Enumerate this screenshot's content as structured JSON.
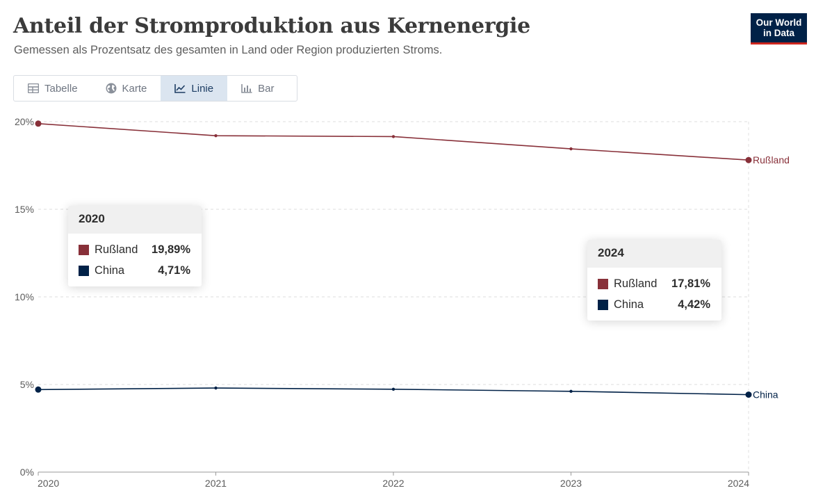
{
  "header": {
    "title": "Anteil der Stromproduktion aus Kernenergie",
    "subtitle": "Gemessen als Prozentsatz des gesamten in Land oder Region produzierten Stroms.",
    "logo_line1": "Our World",
    "logo_line2": "in Data"
  },
  "tabs": [
    {
      "label": "Tabelle",
      "icon": "table-icon",
      "active": false
    },
    {
      "label": "Karte",
      "icon": "globe-icon",
      "active": false
    },
    {
      "label": "Linie",
      "icon": "line-chart-icon",
      "active": true
    },
    {
      "label": "Bar",
      "icon": "bar-chart-icon",
      "active": false
    }
  ],
  "tooltips": [
    {
      "year": "2020",
      "rows": [
        {
          "name": "Rußland",
          "value": "19,89%",
          "color": "#883039"
        },
        {
          "name": "China",
          "value": "4,71%",
          "color": "#002147"
        }
      ]
    },
    {
      "year": "2024",
      "rows": [
        {
          "name": "Rußland",
          "value": "17,81%",
          "color": "#883039"
        },
        {
          "name": "China",
          "value": "4,42%",
          "color": "#002147"
        }
      ]
    }
  ],
  "chart_data": {
    "type": "line",
    "x": [
      2020,
      2021,
      2022,
      2023,
      2024
    ],
    "x_tick_labels": [
      "2020",
      "2021",
      "2022",
      "2023",
      "2024"
    ],
    "ylim": [
      0,
      20
    ],
    "y_ticks": [
      0,
      5,
      10,
      15,
      20
    ],
    "y_tick_labels": [
      "0%",
      "5%",
      "10%",
      "15%",
      "20%"
    ],
    "grid": true,
    "series": [
      {
        "name": "Rußland",
        "color": "#883039",
        "values": [
          19.89,
          19.2,
          19.15,
          18.45,
          17.81
        ]
      },
      {
        "name": "China",
        "color": "#002147",
        "values": [
          4.71,
          4.8,
          4.73,
          4.61,
          4.42
        ]
      }
    ]
  }
}
